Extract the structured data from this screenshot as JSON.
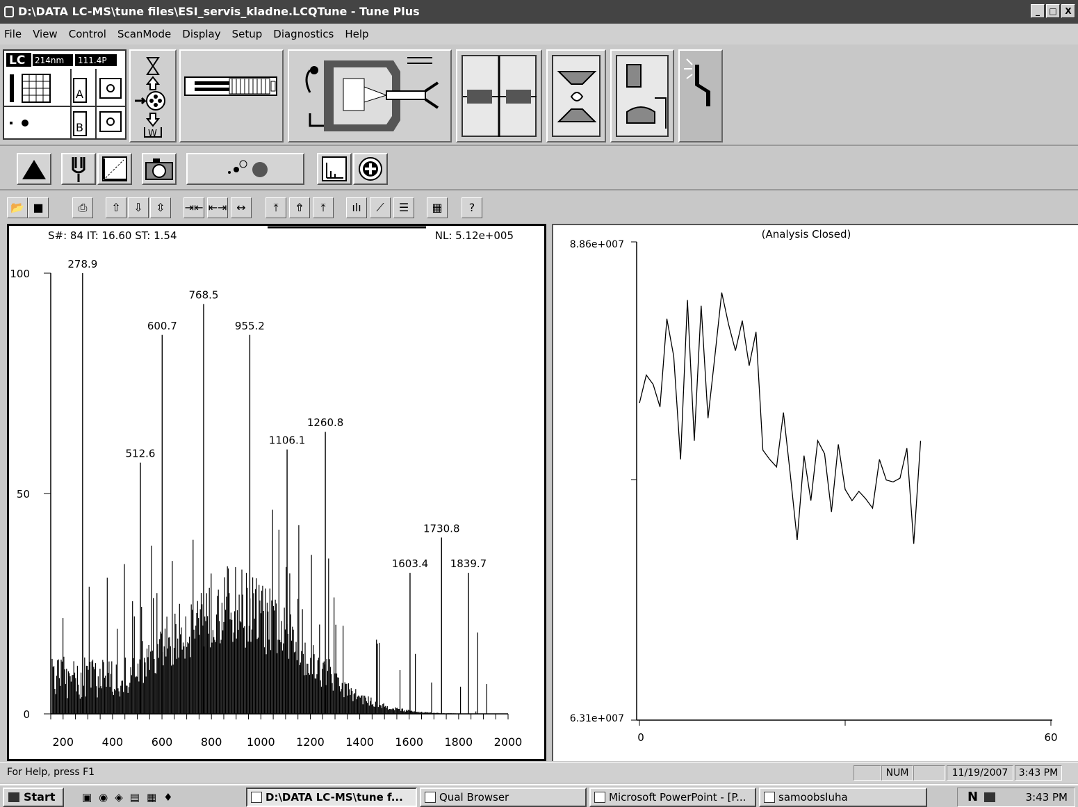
{
  "window": {
    "title": "D:\\DATA LC-MS\\tune files\\ESI_servis_kladne.LCQTune - Tune Plus",
    "buttons": [
      "_",
      "□",
      "X"
    ]
  },
  "menu": [
    "File",
    "View",
    "Control",
    "ScanMode",
    "Display",
    "Setup",
    "Diagnostics",
    "Help"
  ],
  "lc_panel": {
    "logo": "LC",
    "wavelength": "214nm",
    "pressure": "111.4P",
    "bottle_a": "A",
    "bottle_b": "B",
    "waste": "W"
  },
  "toolbar_icons": [
    "open-icon",
    "save-icon",
    "print-icon",
    "up-arrow-icon",
    "down-arrow-icon",
    "updown-arrow-icon",
    "zoom-in-x-icon",
    "zoom-out-x-icon",
    "full-x-icon",
    "autoscale-y-icon",
    "zoom-y-in-icon",
    "zoom-y-out-icon",
    "spectrum-icon",
    "chromatogram-icon",
    "table-icon",
    "calc-icon",
    "help-icon"
  ],
  "spectrum": {
    "header_left": "S#: 84  IT: 16.60  ST: 1.54",
    "header_right": "NL: 5.12e+005",
    "y_ticks": [
      "100",
      "50",
      "0"
    ],
    "x_ticks": [
      "200",
      "400",
      "600",
      "800",
      "1000",
      "1200",
      "1400",
      "1600",
      "1800",
      "2000"
    ],
    "peak_labels": [
      "278.9",
      "768.5",
      "600.7",
      "955.2",
      "1260.8",
      "1106.1",
      "512.6",
      "1730.8",
      "1603.4",
      "1839.7"
    ]
  },
  "chromatogram": {
    "title": "(Analysis Closed)",
    "y_max": "8.86e+007",
    "y_min": "6.31e+007",
    "x_min": "0",
    "x_max": "60"
  },
  "chart_data": [
    {
      "type": "bar",
      "xlabel": "",
      "ylabel": "",
      "xlim": [
        150,
        2000
      ],
      "ylim": [
        0,
        100
      ],
      "x": [
        278.9,
        512.6,
        600.7,
        768.5,
        955.2,
        1106.1,
        1260.8,
        1603.4,
        1730.8,
        1839.7
      ],
      "values": [
        100,
        57,
        86,
        93,
        86,
        60,
        64,
        32,
        40,
        32
      ]
    },
    {
      "type": "line",
      "xlim": [
        0,
        60
      ],
      "ylim": [
        63100000,
        88600000
      ],
      "x": [
        0,
        1,
        2,
        3,
        4,
        5,
        6,
        7,
        8,
        9,
        10,
        11,
        12,
        13,
        14,
        15,
        16,
        17,
        18,
        19,
        20,
        21,
        22,
        23,
        24,
        25,
        26,
        27,
        28,
        29,
        30,
        31,
        32,
        33,
        34,
        35,
        36,
        37,
        38,
        39,
        40,
        41
      ],
      "values": [
        80000000,
        81500000,
        81000000,
        79800000,
        84500000,
        82500000,
        77000000,
        85500000,
        78000000,
        85200000,
        79200000,
        82500000,
        85900000,
        84200000,
        82800000,
        84400000,
        82000000,
        83800000,
        77500000,
        77000000,
        76600000,
        79500000,
        76200000,
        72700000,
        77200000,
        74800000,
        78000000,
        77300000,
        74200000,
        77800000,
        75400000,
        74800000,
        75300000,
        74900000,
        74400000,
        77000000,
        75900000,
        75800000,
        76000000,
        77600000,
        72500000,
        78000000
      ]
    }
  ],
  "status": {
    "help_text": "For Help, press F1",
    "num": "NUM",
    "date": "11/19/2007",
    "time": "3:43 PM"
  },
  "taskbar": {
    "start": "Start",
    "items": [
      "D:\\DATA LC-MS\\tune f...",
      "Qual Browser",
      "Microsoft PowerPoint - [P...",
      "samoobsluha"
    ],
    "clock": "3:43 PM"
  }
}
